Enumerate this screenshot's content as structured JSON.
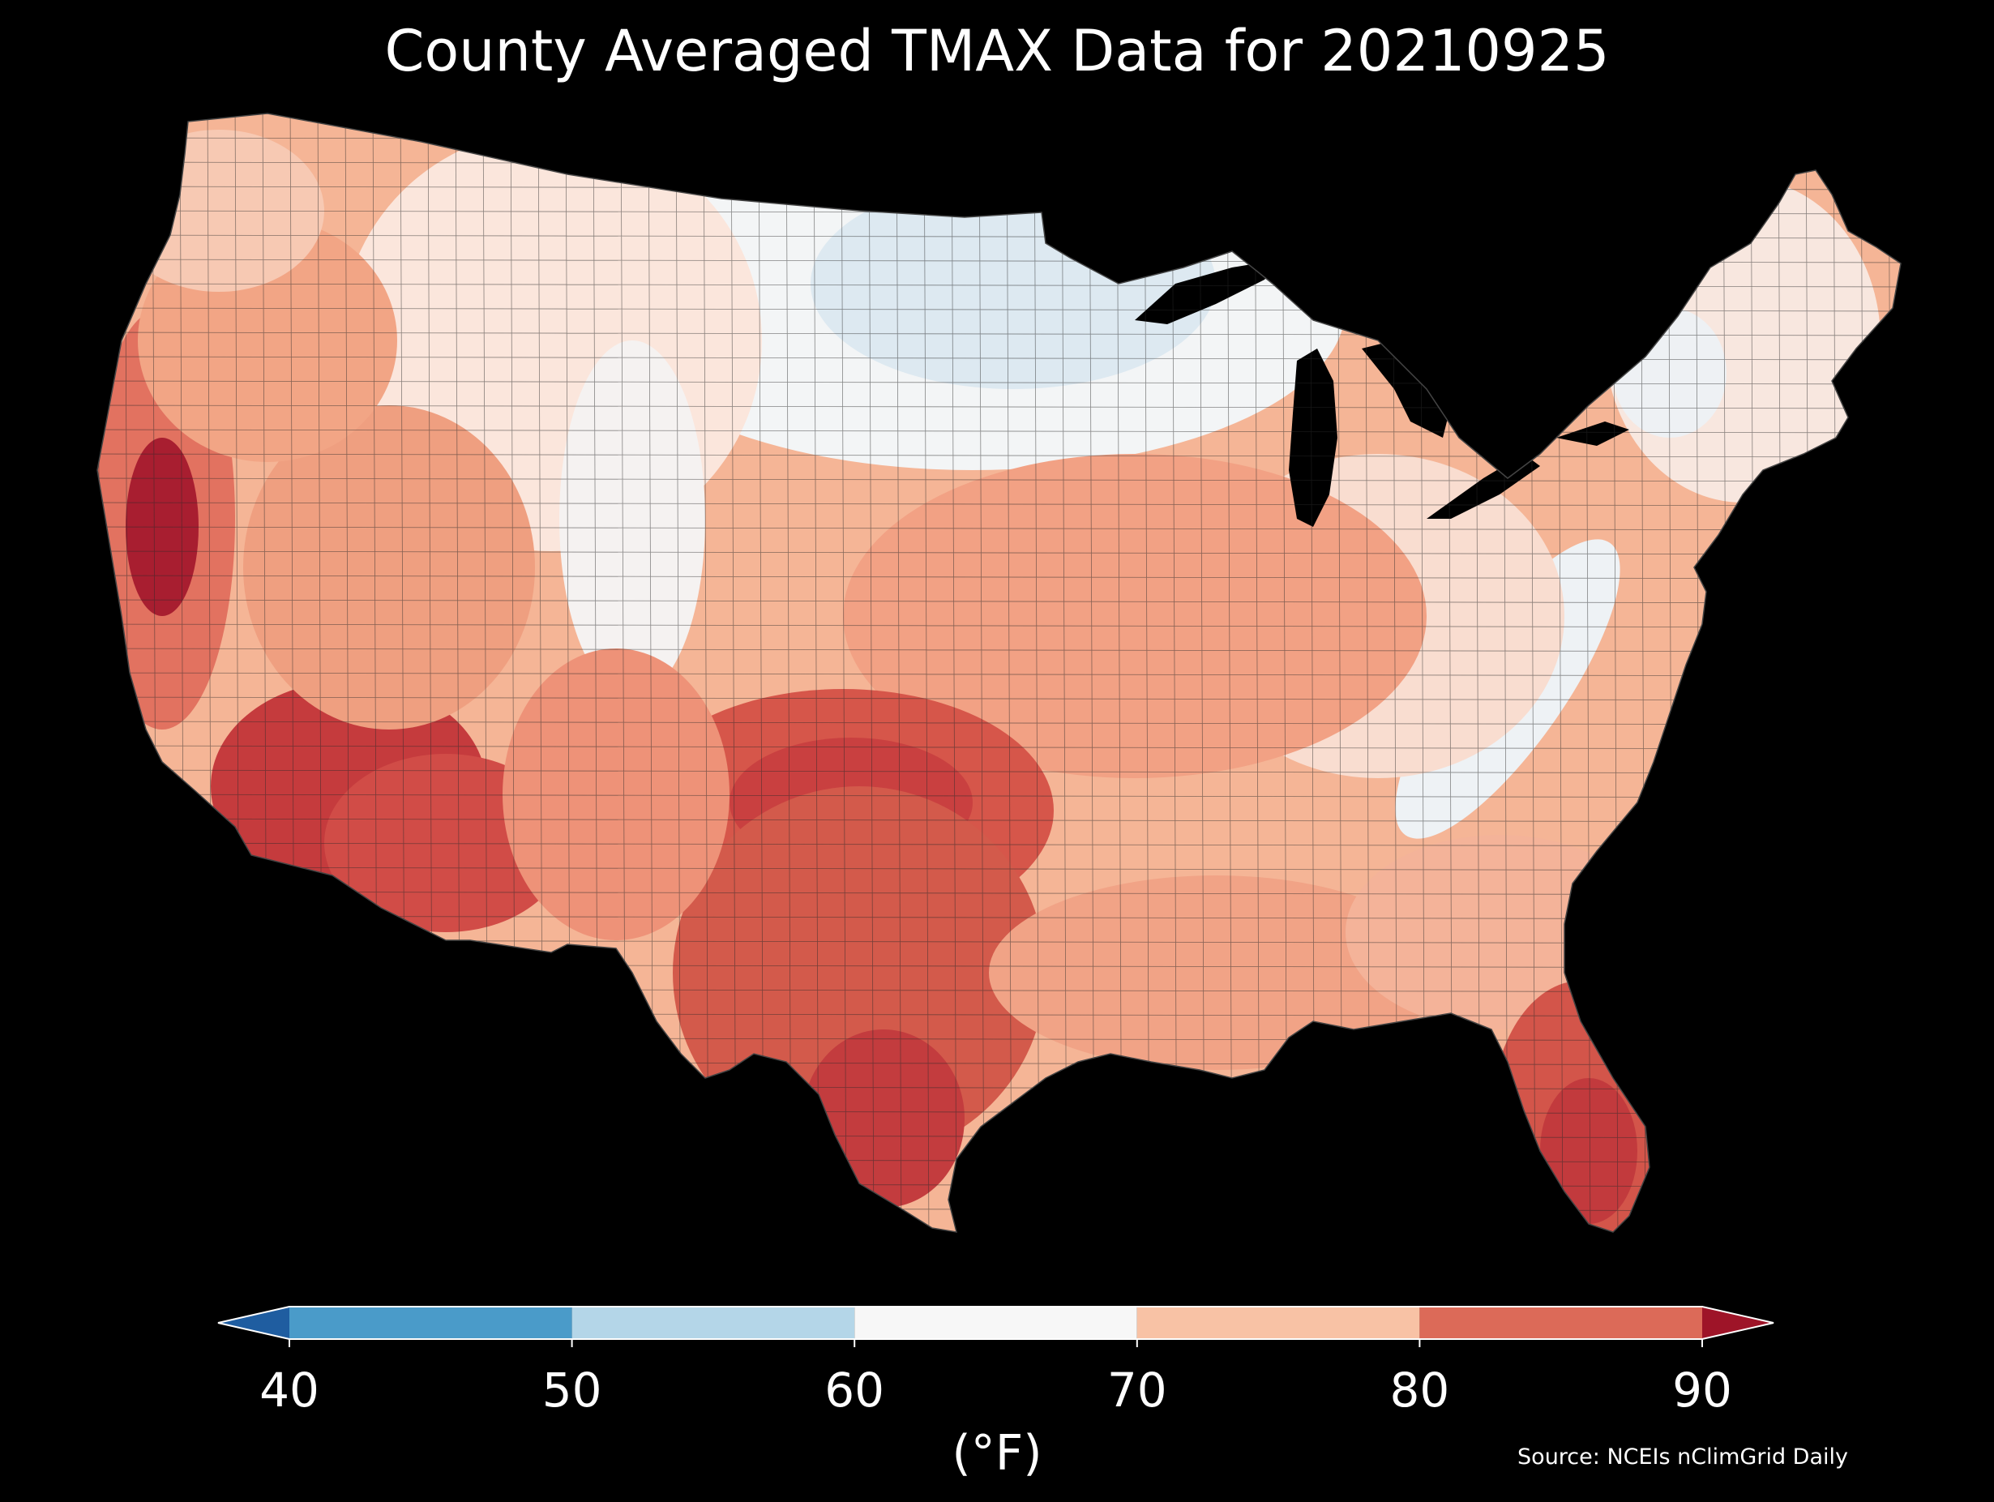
{
  "title": "County Averaged TMAX Data for 20210925",
  "colorbar": {
    "unit_label": "(°F)",
    "ticks": [
      "40",
      "50",
      "60",
      "70",
      "80",
      "90"
    ],
    "bins": [
      {
        "from": 40,
        "to": 50,
        "color": "#4a9bc9"
      },
      {
        "from": 50,
        "to": 60,
        "color": "#b4d6e8"
      },
      {
        "from": 60,
        "to": 70,
        "color": "#f7f7f7"
      },
      {
        "from": 70,
        "to": 80,
        "color": "#f8c2a5"
      },
      {
        "from": 80,
        "to": 90,
        "color": "#dc6a58"
      }
    ],
    "under_color": "#1f5da0",
    "over_color": "#9e1428"
  },
  "source": "Source: NCEIs nClimGrid Daily",
  "colors": {
    "background": "#000000",
    "water": "#000000",
    "county_border": "#2a2a2a"
  }
}
